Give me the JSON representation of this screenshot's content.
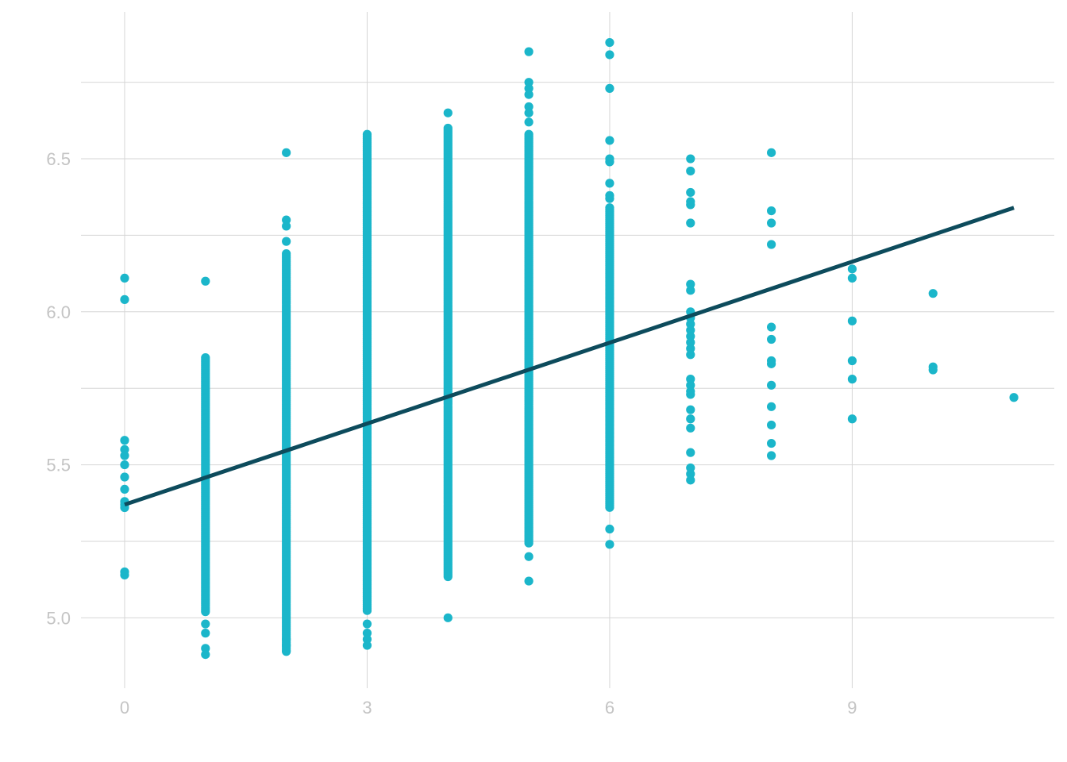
{
  "chart_data": {
    "type": "scatter",
    "title": "",
    "xlabel": "",
    "ylabel": "",
    "xlim": [
      -0.54,
      11.5
    ],
    "ylim": [
      4.77,
      6.98
    ],
    "x_ticks": [
      "0",
      "3",
      "6",
      "9"
    ],
    "y_ticks": [
      "5.0",
      "5.5",
      "6.0",
      "6.5"
    ],
    "grid": true,
    "legend": "none",
    "point_color": "#1bb6ca",
    "line_color": "#0d4b5c",
    "regression_line": {
      "x": [
        0,
        11
      ],
      "y": [
        5.37,
        6.34
      ]
    },
    "series": [
      {
        "points": [
          {
            "x": 0,
            "y": 6.11
          },
          {
            "x": 0,
            "y": 6.04
          },
          {
            "x": 0,
            "y": 5.58
          },
          {
            "x": 0,
            "y": 5.55
          },
          {
            "x": 0,
            "y": 5.53
          },
          {
            "x": 0,
            "y": 5.5
          },
          {
            "x": 0,
            "y": 5.46
          },
          {
            "x": 0,
            "y": 5.42
          },
          {
            "x": 0,
            "y": 5.38
          },
          {
            "x": 0,
            "y": 5.37
          },
          {
            "x": 0,
            "y": 5.36
          },
          {
            "x": 0,
            "y": 5.15
          },
          {
            "x": 0,
            "y": 5.14
          },
          {
            "x": 1,
            "y": 6.1
          },
          {
            "x": 1,
            "y": 4.98
          },
          {
            "x": 1,
            "y": 4.95
          },
          {
            "x": 1,
            "y": 4.9
          },
          {
            "x": 1,
            "y": 4.88
          },
          {
            "x": 2,
            "y": 6.52
          },
          {
            "x": 2,
            "y": 6.3
          },
          {
            "x": 2,
            "y": 6.28
          },
          {
            "x": 2,
            "y": 6.23
          },
          {
            "x": 2,
            "y": 4.93
          },
          {
            "x": 2,
            "y": 4.91
          },
          {
            "x": 2,
            "y": 4.89
          },
          {
            "x": 3,
            "y": 4.98
          },
          {
            "x": 3,
            "y": 4.95
          },
          {
            "x": 3,
            "y": 4.93
          },
          {
            "x": 3,
            "y": 4.91
          },
          {
            "x": 4,
            "y": 6.65
          },
          {
            "x": 4,
            "y": 5.0
          },
          {
            "x": 5,
            "y": 6.85
          },
          {
            "x": 5,
            "y": 6.75
          },
          {
            "x": 5,
            "y": 6.73
          },
          {
            "x": 5,
            "y": 6.71
          },
          {
            "x": 5,
            "y": 6.67
          },
          {
            "x": 5,
            "y": 6.65
          },
          {
            "x": 5,
            "y": 6.62
          },
          {
            "x": 5,
            "y": 5.2
          },
          {
            "x": 5,
            "y": 5.12
          },
          {
            "x": 6,
            "y": 6.88
          },
          {
            "x": 6,
            "y": 6.84
          },
          {
            "x": 6,
            "y": 6.73
          },
          {
            "x": 6,
            "y": 6.56
          },
          {
            "x": 6,
            "y": 6.5
          },
          {
            "x": 6,
            "y": 6.49
          },
          {
            "x": 6,
            "y": 6.42
          },
          {
            "x": 6,
            "y": 6.38
          },
          {
            "x": 6,
            "y": 6.37
          },
          {
            "x": 6,
            "y": 5.29
          },
          {
            "x": 6,
            "y": 5.24
          },
          {
            "x": 7,
            "y": 6.5
          },
          {
            "x": 7,
            "y": 6.46
          },
          {
            "x": 7,
            "y": 6.39
          },
          {
            "x": 7,
            "y": 6.36
          },
          {
            "x": 7,
            "y": 6.35
          },
          {
            "x": 7,
            "y": 6.29
          },
          {
            "x": 7,
            "y": 6.09
          },
          {
            "x": 7,
            "y": 6.07
          },
          {
            "x": 7,
            "y": 6.0
          },
          {
            "x": 7,
            "y": 5.98
          },
          {
            "x": 7,
            "y": 5.96
          },
          {
            "x": 7,
            "y": 5.94
          },
          {
            "x": 7,
            "y": 5.92
          },
          {
            "x": 7,
            "y": 5.9
          },
          {
            "x": 7,
            "y": 5.88
          },
          {
            "x": 7,
            "y": 5.86
          },
          {
            "x": 7,
            "y": 5.78
          },
          {
            "x": 7,
            "y": 5.76
          },
          {
            "x": 7,
            "y": 5.74
          },
          {
            "x": 7,
            "y": 5.73
          },
          {
            "x": 7,
            "y": 5.68
          },
          {
            "x": 7,
            "y": 5.65
          },
          {
            "x": 7,
            "y": 5.62
          },
          {
            "x": 7,
            "y": 5.54
          },
          {
            "x": 7,
            "y": 5.49
          },
          {
            "x": 7,
            "y": 5.47
          },
          {
            "x": 7,
            "y": 5.45
          },
          {
            "x": 8,
            "y": 6.52
          },
          {
            "x": 8,
            "y": 6.33
          },
          {
            "x": 8,
            "y": 6.29
          },
          {
            "x": 8,
            "y": 6.22
          },
          {
            "x": 8,
            "y": 5.95
          },
          {
            "x": 8,
            "y": 5.91
          },
          {
            "x": 8,
            "y": 5.84
          },
          {
            "x": 8,
            "y": 5.83
          },
          {
            "x": 8,
            "y": 5.76
          },
          {
            "x": 8,
            "y": 5.69
          },
          {
            "x": 8,
            "y": 5.63
          },
          {
            "x": 8,
            "y": 5.57
          },
          {
            "x": 8,
            "y": 5.53
          },
          {
            "x": 9,
            "y": 6.14
          },
          {
            "x": 9,
            "y": 6.11
          },
          {
            "x": 9,
            "y": 5.97
          },
          {
            "x": 9,
            "y": 5.84
          },
          {
            "x": 9,
            "y": 5.78
          },
          {
            "x": 9,
            "y": 5.65
          },
          {
            "x": 10,
            "y": 6.06
          },
          {
            "x": 10,
            "y": 5.82
          },
          {
            "x": 10,
            "y": 5.81
          },
          {
            "x": 11,
            "y": 5.72
          }
        ],
        "dense_columns": [
          {
            "x": 1,
            "y_min": 5.02,
            "y_max": 5.85
          },
          {
            "x": 2,
            "y_min": 4.89,
            "y_max": 6.19
          },
          {
            "x": 3,
            "y_min": 5.02,
            "y_max": 6.58
          },
          {
            "x": 4,
            "y_min": 5.13,
            "y_max": 6.6
          },
          {
            "x": 5,
            "y_min": 5.24,
            "y_max": 6.58
          },
          {
            "x": 6,
            "y_min": 5.36,
            "y_max": 6.34
          }
        ]
      }
    ]
  }
}
